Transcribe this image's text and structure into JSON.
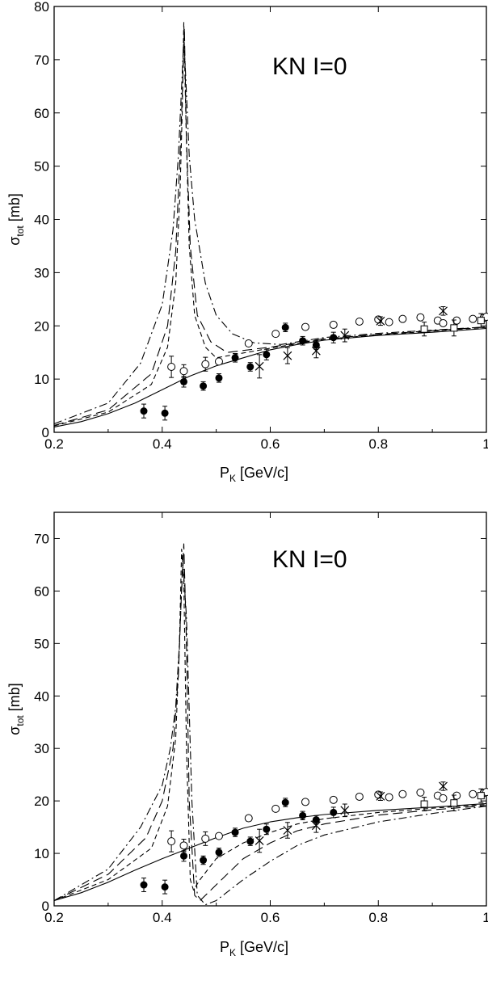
{
  "chart_data": [
    {
      "type": "line",
      "title": "",
      "annotation": "KN  I=0",
      "xlabel": {
        "main": "P",
        "sub": "K",
        "rest": " [GeV/c]"
      },
      "ylabel": {
        "main": "σ",
        "sub": "tot",
        "rest": " [mb]"
      },
      "xlim": [
        0.2,
        1.0
      ],
      "ylim": [
        0,
        80
      ],
      "xticks": [
        0.2,
        0.4,
        0.6,
        0.8,
        1.0
      ],
      "xtick_labels": [
        "0.2",
        "0.4",
        "0.6",
        "0.8",
        "1"
      ],
      "yticks": [
        0,
        10,
        20,
        30,
        40,
        50,
        60,
        70,
        80
      ],
      "ytick_labels": [
        "0",
        "10",
        "20",
        "30",
        "40",
        "50",
        "60",
        "70",
        "80"
      ],
      "series": [
        {
          "style": "solid",
          "x": [
            0.2,
            0.25,
            0.3,
            0.35,
            0.4,
            0.45,
            0.5,
            0.55,
            0.6,
            0.65,
            0.7,
            0.8,
            0.9,
            1.0
          ],
          "y": [
            1.0,
            2.0,
            3.5,
            5.5,
            8.0,
            10.5,
            12.5,
            14.0,
            15.5,
            16.5,
            17.3,
            18.2,
            18.8,
            19.5
          ]
        },
        {
          "style": "dashed",
          "x": [
            0.2,
            0.3,
            0.38,
            0.41,
            0.425,
            0.433,
            0.437,
            0.44,
            0.444,
            0.45,
            0.46,
            0.48,
            0.5,
            0.6,
            0.7,
            0.8,
            0.9,
            1.0
          ],
          "y": [
            1.2,
            3.8,
            9.0,
            16.0,
            28.0,
            45.0,
            60.0,
            77.0,
            58.0,
            35.0,
            22.0,
            16.0,
            14.0,
            15.8,
            17.5,
            18.3,
            19.0,
            19.7
          ]
        },
        {
          "style": "longdash",
          "x": [
            0.2,
            0.3,
            0.38,
            0.41,
            0.425,
            0.433,
            0.438,
            0.441,
            0.445,
            0.452,
            0.465,
            0.49,
            0.52,
            0.6,
            0.7,
            0.8,
            0.9,
            1.0
          ],
          "y": [
            1.3,
            4.2,
            11.0,
            20.0,
            34.0,
            52.0,
            66.0,
            76.0,
            55.0,
            35.0,
            22.0,
            17.0,
            15.0,
            16.0,
            17.6,
            18.4,
            19.1,
            19.8
          ]
        },
        {
          "style": "dashdot",
          "x": [
            0.2,
            0.3,
            0.36,
            0.4,
            0.42,
            0.43,
            0.436,
            0.44,
            0.443,
            0.45,
            0.46,
            0.48,
            0.5,
            0.53,
            0.57,
            0.62,
            0.7,
            0.8,
            0.9,
            1.0
          ],
          "y": [
            1.6,
            5.5,
            13.0,
            24.0,
            38.0,
            52.0,
            65.0,
            74.0,
            68.0,
            52.0,
            40.0,
            28.0,
            22.0,
            18.5,
            16.8,
            16.5,
            17.8,
            18.6,
            19.2,
            19.8
          ]
        }
      ],
      "data_points": [
        {
          "marker": "filled-circle",
          "x": [
            0.366,
            0.405,
            0.44,
            0.476,
            0.505,
            0.535,
            0.563,
            0.593,
            0.628,
            0.66,
            0.685,
            0.717
          ],
          "y": [
            4.0,
            3.6,
            9.5,
            8.7,
            10.2,
            14.0,
            12.3,
            14.6,
            19.7,
            17.2,
            16.4,
            17.8
          ],
          "err": [
            1.3,
            1.3,
            1.0,
            0.8,
            0.8,
            0.8,
            0.8,
            1.0,
            0.8,
            0.8,
            0.8,
            1.0
          ]
        },
        {
          "marker": "open-circle",
          "x": [
            0.417,
            0.44,
            0.48,
            0.505,
            0.56,
            0.61,
            0.665,
            0.717,
            0.765,
            0.8,
            0.82,
            0.845,
            0.878,
            0.91,
            0.92,
            0.945,
            0.975,
            0.995,
            1.0
          ],
          "y": [
            12.3,
            11.5,
            12.8,
            13.3,
            16.7,
            18.5,
            19.8,
            20.2,
            20.8,
            21.2,
            20.7,
            21.3,
            21.6,
            21.0,
            20.5,
            21.0,
            21.3,
            21.5,
            21.7
          ],
          "err": [
            2.0,
            1.2,
            1.3,
            0,
            0,
            0,
            0,
            0,
            0,
            0,
            0,
            0,
            0,
            0,
            0,
            0,
            0,
            0,
            0
          ]
        },
        {
          "marker": "x-cross",
          "x": [
            0.58,
            0.632,
            0.685,
            0.738,
            0.804,
            0.92
          ],
          "y": [
            12.4,
            14.4,
            15.3,
            18.2,
            20.9,
            22.8
          ],
          "err": [
            2.2,
            1.5,
            1.3,
            1.2,
            0.8,
            0.8
          ]
        },
        {
          "marker": "open-square",
          "x": [
            0.885,
            0.94,
            0.99
          ],
          "y": [
            19.4,
            19.6,
            21.0
          ],
          "err": [
            1.3,
            1.5,
            1.3
          ]
        }
      ]
    },
    {
      "type": "line",
      "title": "",
      "annotation": "KN  I=0",
      "xlabel": {
        "main": "P",
        "sub": "K",
        "rest": " [GeV/c]"
      },
      "ylabel": {
        "main": "σ",
        "sub": "tot",
        "rest": " [mb]"
      },
      "xlim": [
        0.2,
        1.0
      ],
      "ylim": [
        0,
        75
      ],
      "xticks": [
        0.2,
        0.4,
        0.6,
        0.8,
        1.0
      ],
      "xtick_labels": [
        "0.2",
        "0.4",
        "0.6",
        "0.8",
        "1"
      ],
      "yticks": [
        0,
        10,
        20,
        30,
        40,
        50,
        60,
        70
      ],
      "ytick_labels": [
        "0",
        "10",
        "20",
        "30",
        "40",
        "50",
        "60",
        "70"
      ],
      "series": [
        {
          "style": "solid",
          "x": [
            0.2,
            0.25,
            0.3,
            0.35,
            0.4,
            0.45,
            0.5,
            0.55,
            0.6,
            0.65,
            0.7,
            0.8,
            0.9,
            1.0
          ],
          "y": [
            1.0,
            2.5,
            4.5,
            6.8,
            9.0,
            11.0,
            13.0,
            14.8,
            16.0,
            16.8,
            17.4,
            18.2,
            18.8,
            19.5
          ]
        },
        {
          "style": "dashed",
          "x": [
            0.2,
            0.3,
            0.38,
            0.41,
            0.425,
            0.432,
            0.436,
            0.44,
            0.445,
            0.452,
            0.458,
            0.47,
            0.5,
            0.55,
            0.6,
            0.65,
            0.7,
            0.8,
            0.9,
            1.0
          ],
          "y": [
            1.0,
            5.0,
            11.0,
            19.0,
            32.0,
            50.0,
            68.0,
            62.0,
            30.0,
            5.0,
            3.0,
            5.0,
            9.0,
            12.0,
            14.0,
            15.6,
            16.6,
            17.8,
            18.6,
            19.3
          ]
        },
        {
          "style": "longdash",
          "x": [
            0.2,
            0.3,
            0.37,
            0.4,
            0.42,
            0.43,
            0.435,
            0.44,
            0.445,
            0.45,
            0.46,
            0.47,
            0.5,
            0.55,
            0.6,
            0.65,
            0.7,
            0.8,
            0.9,
            1.0
          ],
          "y": [
            1.0,
            6.0,
            13.0,
            20.0,
            30.0,
            44.0,
            58.0,
            69.0,
            50.0,
            20.0,
            2.0,
            1.0,
            4.0,
            9.0,
            12.0,
            14.3,
            15.6,
            17.3,
            18.3,
            19.1
          ]
        },
        {
          "style": "dashdot",
          "x": [
            0.2,
            0.3,
            0.36,
            0.4,
            0.415,
            0.425,
            0.432,
            0.438,
            0.445,
            0.455,
            0.465,
            0.48,
            0.5,
            0.55,
            0.6,
            0.65,
            0.7,
            0.8,
            0.9,
            1.0
          ],
          "y": [
            1.0,
            7.0,
            15.0,
            23.0,
            30.0,
            38.0,
            50.0,
            66.0,
            55.0,
            20.0,
            2.0,
            0.2,
            1.0,
            5.0,
            8.5,
            11.5,
            13.5,
            16.0,
            17.6,
            19.0
          ]
        }
      ],
      "data_points": [
        {
          "marker": "filled-circle",
          "x": [
            0.366,
            0.405,
            0.44,
            0.476,
            0.505,
            0.535,
            0.563,
            0.593,
            0.628,
            0.66,
            0.685,
            0.717
          ],
          "y": [
            4.0,
            3.6,
            9.5,
            8.7,
            10.2,
            14.0,
            12.3,
            14.6,
            19.7,
            17.2,
            16.4,
            17.8
          ],
          "err": [
            1.3,
            1.3,
            1.0,
            0.8,
            0.8,
            0.8,
            0.8,
            1.0,
            0.8,
            0.8,
            0.8,
            1.0
          ]
        },
        {
          "marker": "open-circle",
          "x": [
            0.417,
            0.44,
            0.48,
            0.505,
            0.56,
            0.61,
            0.665,
            0.717,
            0.765,
            0.8,
            0.82,
            0.845,
            0.878,
            0.91,
            0.92,
            0.945,
            0.975,
            0.995,
            1.0
          ],
          "y": [
            12.3,
            11.5,
            12.8,
            13.3,
            16.7,
            18.5,
            19.8,
            20.2,
            20.8,
            21.2,
            20.7,
            21.3,
            21.6,
            21.0,
            20.5,
            21.0,
            21.3,
            21.5,
            21.7
          ],
          "err": [
            2.0,
            1.2,
            1.3,
            0,
            0,
            0,
            0,
            0,
            0,
            0,
            0,
            0,
            0,
            0,
            0,
            0,
            0,
            0,
            0
          ]
        },
        {
          "marker": "x-cross",
          "x": [
            0.58,
            0.632,
            0.685,
            0.738,
            0.804,
            0.92
          ],
          "y": [
            12.4,
            14.4,
            15.3,
            18.2,
            20.9,
            22.8
          ],
          "err": [
            2.2,
            1.5,
            1.3,
            1.2,
            0.8,
            0.8
          ]
        },
        {
          "marker": "open-square",
          "x": [
            0.885,
            0.94,
            0.99
          ],
          "y": [
            19.4,
            19.6,
            21.0
          ],
          "err": [
            1.3,
            1.5,
            1.3
          ]
        }
      ]
    }
  ]
}
